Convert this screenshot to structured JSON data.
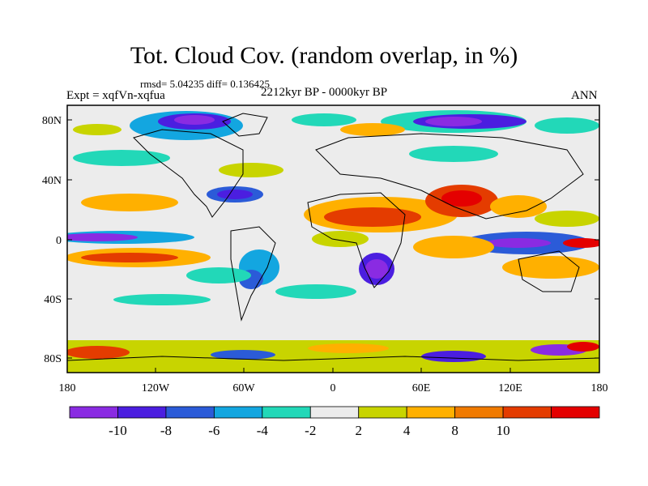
{
  "title": "Tot. Cloud Cov. (random overlap, in %)",
  "stats": "rmsd= 5.04235 diff= 0.136425",
  "experiment": "Expt = xqfVn-xqfua",
  "period": "2212kyr BP - 0000kyr BP",
  "season": "ANN",
  "lat_ticks": [
    "80N",
    "40N",
    "0",
    "40S",
    "80S"
  ],
  "lon_ticks": [
    "180",
    "120W",
    "60W",
    "0",
    "60E",
    "120E",
    "180"
  ],
  "colorbar": {
    "labels": [
      "-10",
      "-8",
      "-6",
      "-4",
      "-2",
      "2",
      "4",
      "8",
      "10"
    ],
    "colors": [
      "#8a2be2",
      "#4b1ee0",
      "#2b5bd8",
      "#13a6e0",
      "#22d8b8",
      "#ececec",
      "#c8d400",
      "#ffb000",
      "#f07a00",
      "#e43c00",
      "#e40000"
    ]
  }
}
